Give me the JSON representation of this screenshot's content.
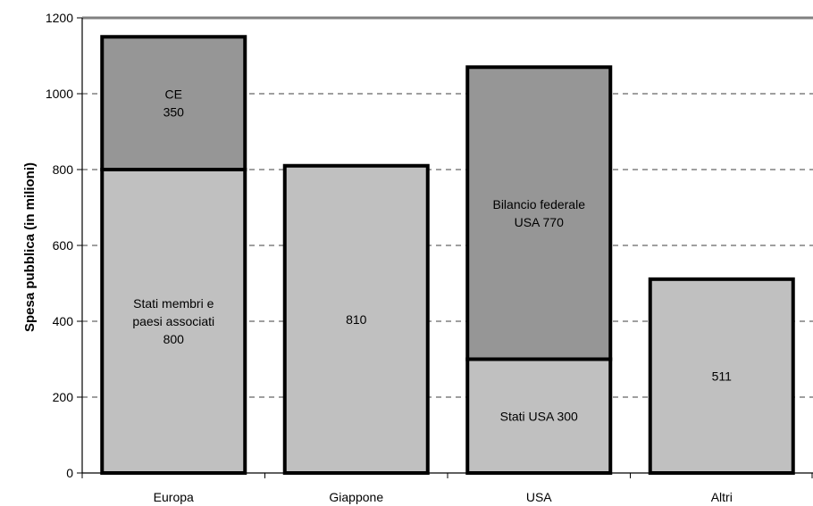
{
  "chart_data": {
    "type": "bar",
    "stacked": true,
    "title": "",
    "xlabel": "",
    "ylabel": "Spesa pubblica (in milioni)",
    "ylim": [
      0,
      1200
    ],
    "yticks": [
      0,
      200,
      400,
      600,
      800,
      1000,
      1200
    ],
    "grid": "horizontal dashed",
    "categories": [
      "Europa",
      "Giappone",
      "USA",
      "Altri"
    ],
    "bars": [
      {
        "category": "Europa",
        "segments": [
          {
            "value": 800,
            "label": [
              "Stati membri e",
              "paesi associati",
              "800"
            ],
            "color": "#c0c0c0"
          },
          {
            "value": 350,
            "label": [
              "CE",
              "350"
            ],
            "color": "#969696"
          }
        ]
      },
      {
        "category": "Giappone",
        "segments": [
          {
            "value": 810,
            "label": [
              "810"
            ],
            "color": "#c0c0c0"
          }
        ]
      },
      {
        "category": "USA",
        "segments": [
          {
            "value": 300,
            "label": [
              "Stati USA 300"
            ],
            "color": "#c0c0c0"
          },
          {
            "value": 770,
            "label": [
              "Bilancio federale",
              "USA 770"
            ],
            "color": "#969696"
          }
        ]
      },
      {
        "category": "Altri",
        "segments": [
          {
            "value": 511,
            "label": [
              "511"
            ],
            "color": "#c0c0c0"
          }
        ]
      }
    ]
  }
}
